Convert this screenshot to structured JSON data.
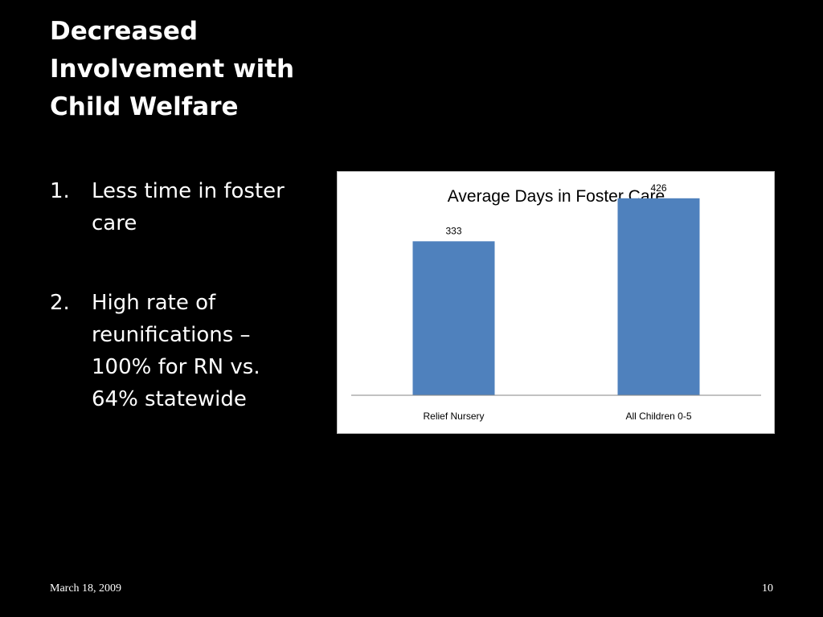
{
  "slide": {
    "title_lines": [
      "Decreased",
      "Involvement with",
      "Child Welfare"
    ],
    "bullets": [
      {
        "number": "1.",
        "lines": [
          "Less time in foster",
          "care"
        ]
      },
      {
        "number": "2.",
        "lines": [
          "High rate of",
          "reunifications –",
          "100% for RN vs.",
          "64% statewide"
        ]
      }
    ],
    "footer_date": "March 18, 2009",
    "page_number": "10",
    "background_color": "#000000",
    "text_color": "#ffffff"
  },
  "chart_data": {
    "type": "bar",
    "title": "Average Days in Foster Care",
    "categories": [
      "Relief Nursery",
      "All Children 0-5"
    ],
    "values": [
      333,
      426
    ],
    "data_labels": [
      "333",
      "426"
    ],
    "xlabel": "",
    "ylabel": "",
    "ylim": [
      0,
      450
    ],
    "grid": false,
    "legend": "none",
    "bar_color": "#4f81bd",
    "axis_color": "#868686"
  }
}
